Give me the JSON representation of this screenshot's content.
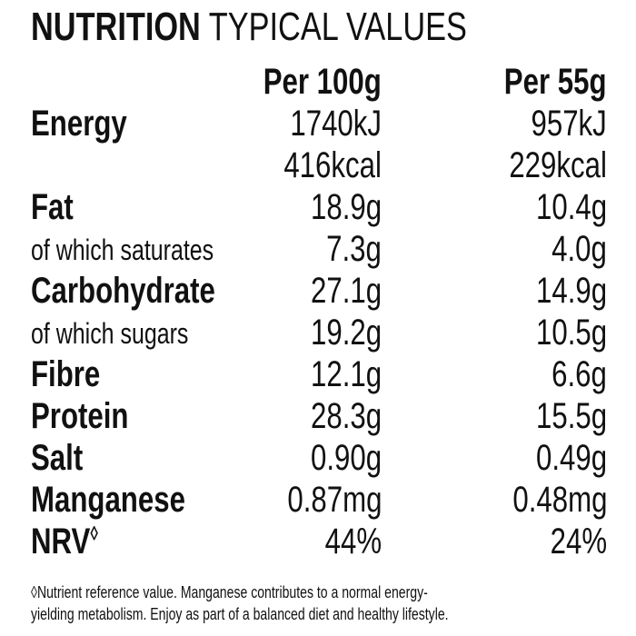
{
  "title": {
    "bold": "NUTRITION",
    "light": "TYPICAL VALUES"
  },
  "columns": {
    "per100": "Per 100g",
    "per55": "Per 55g"
  },
  "rows": [
    {
      "label": "Energy",
      "per100": "1740kJ",
      "per55": "957kJ"
    },
    {
      "label": "",
      "per100": "416kcal",
      "per55": "229kcal"
    },
    {
      "label": "Fat",
      "per100": "18.9g",
      "per55": "10.4g"
    },
    {
      "label": "of which saturates",
      "per100": "7.3g",
      "per55": "4.0g"
    },
    {
      "label": "Carbohydrate",
      "per100": "27.1g",
      "per55": "14.9g"
    },
    {
      "label": "of which sugars",
      "per100": "19.2g",
      "per55": "10.5g"
    },
    {
      "label": "Fibre",
      "per100": "12.1g",
      "per55": "6.6g"
    },
    {
      "label": "Protein",
      "per100": "28.3g",
      "per55": "15.5g"
    },
    {
      "label": "Salt",
      "per100": "0.90g",
      "per55": "0.49g"
    },
    {
      "label": "Manganese",
      "per100": "0.87mg",
      "per55": "0.48mg"
    },
    {
      "label": "NRV",
      "mark": "◊",
      "per100": "44%",
      "per55": "24%"
    }
  ],
  "footnote": {
    "line1": "◊Nutrient reference value. Manganese contributes to a normal energy-",
    "line2": "yielding metabolism. Enjoy as part of a balanced diet and healthy lifestyle."
  }
}
